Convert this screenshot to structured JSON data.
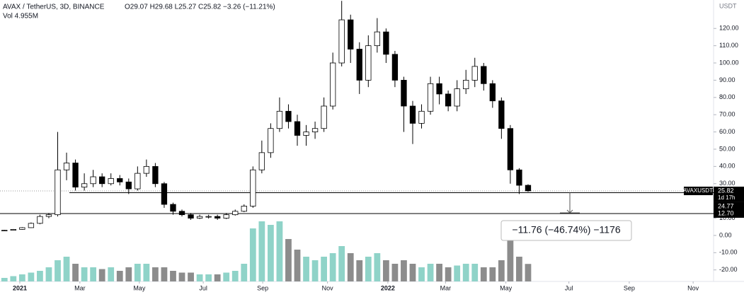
{
  "chart_data": {
    "type": "candlestick",
    "legend_title": "AVAX / TetherUS, 3D, BINANCE",
    "legend_ohlc": "O29.07 H29.68 L25.27 C25.82 −3.26 (−11.21%)",
    "volume_label": "Vol 4.955M",
    "axis_unit": "USDT",
    "up_color": "#ffffff",
    "down_color": "#000000",
    "volume_up_color": "#8fd3c8",
    "volume_down_color": "#8c8c8c",
    "open": [
      2.8,
      3,
      3.5,
      4.5,
      7,
      11,
      12,
      38,
      42,
      28,
      30,
      34,
      30,
      33,
      31,
      27,
      36,
      40,
      30,
      18,
      14,
      12,
      10,
      11,
      11,
      10,
      12,
      14,
      17,
      38,
      48,
      62,
      72,
      66,
      58,
      60,
      62,
      75,
      100,
      125,
      108,
      90,
      110,
      118,
      105,
      90,
      75,
      65,
      72,
      88,
      82,
      75,
      85,
      90,
      98,
      88,
      78,
      62,
      38,
      29.07
    ],
    "high": [
      3.2,
      3.7,
      4.8,
      7.5,
      12,
      13,
      60,
      48,
      44,
      36,
      38,
      36,
      36,
      35,
      33,
      40,
      44,
      42,
      31,
      19,
      15,
      13,
      12,
      12,
      12,
      13,
      15,
      18,
      40,
      55,
      65,
      80,
      76,
      70,
      64,
      66,
      80,
      106,
      136,
      128,
      112,
      116,
      126,
      120,
      107,
      92,
      78,
      76,
      92,
      92,
      84,
      90,
      96,
      103,
      100,
      90,
      80,
      64,
      39,
      29.68
    ],
    "low": [
      2.6,
      2.9,
      3.3,
      4.3,
      6.5,
      10,
      11,
      32,
      26,
      26,
      28,
      28,
      29,
      29,
      24,
      26,
      34,
      28,
      16,
      12,
      11,
      9,
      9.5,
      9.8,
      9,
      9.5,
      11.5,
      13.5,
      16,
      36,
      45,
      60,
      62,
      52,
      52,
      56,
      60,
      73,
      98,
      100,
      82,
      86,
      106,
      100,
      86,
      60,
      53,
      62,
      70,
      76,
      72,
      72,
      82,
      86,
      84,
      74,
      56,
      30,
      24,
      25.27
    ],
    "close": [
      3,
      3.5,
      4.5,
      7,
      11,
      12,
      38,
      42,
      28,
      30,
      34,
      30,
      33,
      31,
      27,
      36,
      40,
      30,
      18,
      14,
      12,
      10,
      11,
      11,
      10,
      12,
      14,
      17,
      38,
      48,
      62,
      72,
      66,
      58,
      60,
      62,
      75,
      100,
      125,
      108,
      90,
      110,
      118,
      105,
      90,
      75,
      65,
      72,
      88,
      82,
      75,
      85,
      90,
      98,
      88,
      78,
      62,
      38,
      29.07,
      25.82
    ],
    "volume": [
      1,
      1.5,
      2,
      2.5,
      3,
      4,
      6,
      7,
      5,
      4,
      4,
      3.5,
      4,
      3,
      4,
      5,
      5,
      4,
      4,
      3,
      2.5,
      2.5,
      2,
      2,
      2,
      2.5,
      3,
      5,
      15,
      17,
      16,
      17,
      12,
      9,
      7,
      6,
      7,
      8,
      10,
      8,
      6,
      7,
      8,
      6,
      5,
      6,
      5,
      4,
      5,
      5,
      4,
      4.5,
      5,
      5,
      4,
      4,
      6,
      12,
      7,
      4.955
    ],
    "xlim": [
      -0.5,
      79.9
    ],
    "xticks": [
      {
        "value": 1.73,
        "label": "2021"
      },
      {
        "value": 8.5,
        "label": "Mar"
      },
      {
        "value": 15.2,
        "label": "May"
      },
      {
        "value": 22.4,
        "label": "Jul"
      },
      {
        "value": 29.1,
        "label": "Sep"
      },
      {
        "value": 36.4,
        "label": "Nov"
      },
      {
        "value": 43.2,
        "label": "2022"
      },
      {
        "value": 49.7,
        "label": "Mar"
      },
      {
        "value": 56.5,
        "label": "May"
      },
      {
        "value": 63.6,
        "label": "Jul"
      },
      {
        "value": 70.4,
        "label": "Sep"
      },
      {
        "value": 77.6,
        "label": "Nov"
      }
    ],
    "ylim": [
      -31.6,
      136.5
    ],
    "yticks": [
      {
        "value": 120,
        "label": "120.00"
      },
      {
        "value": 110,
        "label": "110.00"
      },
      {
        "value": 100,
        "label": "100.00"
      },
      {
        "value": 90,
        "label": "90.00"
      },
      {
        "value": 80,
        "label": "80.00"
      },
      {
        "value": 70,
        "label": "70.00"
      },
      {
        "value": 60,
        "label": "60.00"
      },
      {
        "value": 50,
        "label": "50.00"
      },
      {
        "value": 40,
        "label": "40.00"
      },
      {
        "value": 30,
        "label": "30.00"
      },
      {
        "value": 10,
        "label": "10.00"
      },
      {
        "value": 0,
        "label": "0.00"
      },
      {
        "value": -10,
        "label": "-10.00"
      },
      {
        "value": -20,
        "label": "-20.00"
      }
    ],
    "last_price": {
      "symbol": "AVAXUSDT",
      "value": 25.82,
      "label": "25.82",
      "countdown": "1d 17h"
    },
    "levels": [
      {
        "value": 24.77,
        "label": "24.77"
      },
      {
        "value": 12.7,
        "label": "12.70"
      }
    ],
    "measure": "−11.76 (−46.74%) −1176"
  }
}
